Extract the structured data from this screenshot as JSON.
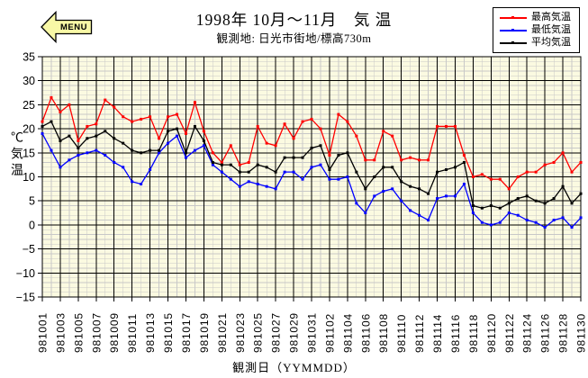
{
  "menu": {
    "label": "MENU",
    "fill": "#f8f8a6"
  },
  "header": {
    "title": "1998年 10月～11月　気 温",
    "subtitle": "観測地:  日光市街地/標高730m"
  },
  "axes": {
    "y_unit_label": "℃気温",
    "x_axis_title": "観測日（YYMMDD）"
  },
  "chart_data": {
    "type": "line",
    "title": "1998年 10月～11月 気温",
    "subtitle": "観測地: 日光市街地/標高730m",
    "xlabel": "観測日（YYMMDD）",
    "ylabel": "℃ 気温",
    "ylim": [
      -15,
      35
    ],
    "y_tick_step": 5,
    "x_tick_every": 2,
    "grid": {
      "bg": "#fbfae1",
      "minor": "#c8c8c8",
      "major": "#000000"
    },
    "legend_position": "top-right",
    "x": [
      "981001",
      "981002",
      "981003",
      "981004",
      "981005",
      "981006",
      "981007",
      "981008",
      "981009",
      "981010",
      "981011",
      "981012",
      "981013",
      "981014",
      "981015",
      "981016",
      "981017",
      "981018",
      "981019",
      "981020",
      "981021",
      "981022",
      "981023",
      "981024",
      "981025",
      "981026",
      "981027",
      "981028",
      "981029",
      "981030",
      "981031",
      "981101",
      "981102",
      "981103",
      "981104",
      "981105",
      "981106",
      "981107",
      "981108",
      "981109",
      "981110",
      "981111",
      "981112",
      "981113",
      "981114",
      "981115",
      "981116",
      "981117",
      "981118",
      "981119",
      "981120",
      "981121",
      "981122",
      "981123",
      "981124",
      "981125",
      "981126",
      "981127",
      "981128",
      "981129",
      "981130"
    ],
    "series": [
      {
        "key": "max-temp",
        "name": "最高気温",
        "color": "#ff0000",
        "values": [
          21.5,
          26.5,
          23.5,
          25,
          17.5,
          20.5,
          21,
          26,
          24.5,
          22.5,
          21.5,
          22,
          22.5,
          18,
          22.5,
          23,
          19,
          25.5,
          19.5,
          15,
          13,
          16.5,
          12.5,
          13,
          20.5,
          17,
          16.5,
          21,
          18,
          21.5,
          22,
          20,
          14.5,
          23,
          21.5,
          18.5,
          13.5,
          13.5,
          19.5,
          18.5,
          13.5,
          14,
          13.5,
          13.5,
          20.5,
          20.5,
          20.5,
          14.5,
          10,
          10.5,
          9.5,
          9.5,
          7.5,
          10,
          11,
          11,
          12.5,
          13,
          15,
          11,
          13
        ]
      },
      {
        "key": "min-temp",
        "name": "最低気温",
        "color": "#0000ff",
        "values": [
          19,
          15.5,
          12,
          13.5,
          14.5,
          15,
          15.5,
          14.5,
          13,
          12,
          9,
          8.5,
          11.5,
          15,
          17,
          18.5,
          14,
          15.5,
          16.5,
          12.5,
          11,
          9.5,
          8,
          9,
          8.5,
          8,
          7.5,
          11,
          11,
          9.5,
          12,
          12.5,
          9.5,
          9.5,
          10,
          4.5,
          2.5,
          6,
          7,
          7.5,
          5,
          3,
          2,
          1,
          5.5,
          6,
          6,
          8.5,
          2.5,
          0.5,
          0,
          0.5,
          2.5,
          2,
          1,
          0.5,
          -0.5,
          1,
          1.5,
          -0.5,
          1.5
        ]
      },
      {
        "key": "avg-temp",
        "name": "平均気温",
        "color": "#000000",
        "values": [
          20.5,
          21.5,
          17.5,
          18.5,
          16,
          18,
          18.5,
          19.5,
          18,
          17,
          15.5,
          15,
          15.5,
          15.5,
          19.5,
          20,
          15,
          20.5,
          17.5,
          13,
          12.5,
          12.5,
          11,
          11,
          12.5,
          12,
          11,
          14,
          14,
          14,
          16,
          16.5,
          11.5,
          14.5,
          15,
          11,
          7.5,
          10,
          12,
          12,
          9,
          8,
          7.5,
          6.5,
          11,
          11.5,
          12,
          13,
          4,
          3.5,
          4,
          3.5,
          4.5,
          5.5,
          6,
          5,
          4.5,
          5.5,
          8,
          4.5,
          6.5
        ]
      }
    ]
  }
}
